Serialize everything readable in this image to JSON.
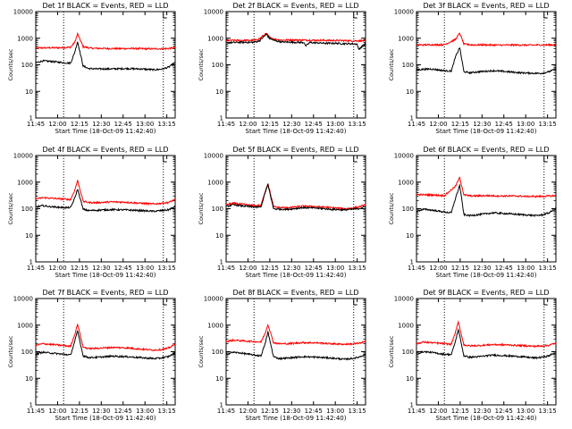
{
  "chart_data": [
    {
      "type": "line",
      "title": "Det 1f BLACK = Events, RED = LLD",
      "xlabel": "Start Time (18-Oct-09 11:42:40)",
      "ylabel": "Counts/sec",
      "yticks": [
        "1",
        "10",
        "100",
        "1000",
        "10000"
      ],
      "xticks": [
        "11:45",
        "12:00",
        "12:15",
        "12:30",
        "12:45",
        "13:00",
        "13:15"
      ],
      "ylim": [
        1,
        10000
      ],
      "xlim": [
        0,
        100
      ],
      "yscale": "log",
      "vlines": [
        20,
        91.5
      ],
      "series": [
        {
          "color": "#ff0000",
          "x": [
            0,
            20,
            25,
            28,
            30,
            34,
            40,
            50,
            60,
            70,
            80,
            90,
            95,
            100
          ],
          "y": [
            430,
            440,
            460,
            700,
            1450,
            480,
            420,
            410,
            405,
            410,
            400,
            400,
            410,
            440
          ]
        },
        {
          "color": "#000000",
          "x": [
            0,
            5,
            10,
            20,
            25,
            28,
            30,
            34,
            38,
            45,
            55,
            65,
            75,
            85,
            90,
            95,
            100
          ],
          "y": [
            120,
            140,
            135,
            120,
            115,
            300,
            750,
            90,
            72,
            70,
            70,
            72,
            70,
            65,
            68,
            80,
            120
          ]
        }
      ]
    },
    {
      "type": "line",
      "title": "Det 2f BLACK = Events, RED = LLD",
      "xlabel": "Start Time (18-Oct-09 11:42:40)",
      "ylabel": "Counts/sec",
      "yticks": [
        "1",
        "10",
        "100",
        "1000",
        "10000"
      ],
      "xticks": [
        "11:45",
        "12:00",
        "12:15",
        "12:30",
        "12:45",
        "13:00",
        "13:15"
      ],
      "ylim": [
        1,
        10000
      ],
      "xlim": [
        0,
        100
      ],
      "yscale": "log",
      "vlines": [
        20,
        91.5
      ],
      "series": [
        {
          "color": "#ff0000",
          "x": [
            0,
            10,
            20,
            24,
            27,
            29,
            31,
            35,
            40,
            50,
            60,
            70,
            80,
            90,
            100
          ],
          "y": [
            820,
            830,
            830,
            950,
            1300,
            1500,
            1100,
            900,
            850,
            860,
            840,
            830,
            820,
            800,
            800
          ]
        },
        {
          "color": "#000000",
          "x": [
            0,
            10,
            20,
            24,
            27,
            29,
            31,
            35,
            40,
            50,
            56,
            57,
            60,
            70,
            80,
            85,
            90,
            94,
            95,
            100
          ],
          "y": [
            680,
            700,
            700,
            800,
            1150,
            1400,
            1000,
            800,
            720,
            700,
            690,
            500,
            690,
            650,
            640,
            620,
            620,
            600,
            380,
            620
          ]
        }
      ]
    },
    {
      "type": "line",
      "title": "Det 3f BLACK = Events, RED = LLD",
      "xlabel": "Start Time (18-Oct-09 11:42:40)",
      "ylabel": "Counts/sec",
      "yticks": [
        "1",
        "10",
        "100",
        "1000",
        "10000"
      ],
      "xticks": [
        "11:45",
        "12:00",
        "12:15",
        "12:30",
        "12:45",
        "13:00",
        "13:15"
      ],
      "ylim": [
        1,
        10000
      ],
      "xlim": [
        0,
        100
      ],
      "yscale": "log",
      "vlines": [
        20,
        91.5
      ],
      "series": [
        {
          "color": "#ff0000",
          "x": [
            0,
            20,
            28,
            31,
            34,
            40,
            50,
            60,
            70,
            80,
            90,
            100
          ],
          "y": [
            560,
            570,
            900,
            1550,
            600,
            560,
            560,
            550,
            555,
            550,
            560,
            560
          ]
        },
        {
          "color": "#000000",
          "x": [
            0,
            10,
            20,
            25,
            28,
            31,
            34,
            38,
            45,
            55,
            65,
            75,
            85,
            90,
            95,
            100
          ],
          "y": [
            65,
            70,
            60,
            58,
            200,
            450,
            55,
            50,
            55,
            60,
            55,
            50,
            48,
            48,
            55,
            70
          ]
        }
      ]
    },
    {
      "type": "line",
      "title": "Det 4f BLACK = Events, RED = LLD",
      "xlabel": "Start Time (18-Oct-09 11:42:40)",
      "ylabel": "Counts/sec",
      "yticks": [
        "1",
        "10",
        "100",
        "1000",
        "10000"
      ],
      "xticks": [
        "11:45",
        "12:00",
        "12:15",
        "12:30",
        "12:45",
        "13:00",
        "13:15"
      ],
      "ylim": [
        1,
        10000
      ],
      "xlim": [
        0,
        100
      ],
      "yscale": "log",
      "vlines": [
        20,
        91.5
      ],
      "series": [
        {
          "color": "#ff0000",
          "x": [
            0,
            5,
            10,
            20,
            25,
            28,
            30,
            34,
            38,
            45,
            55,
            65,
            75,
            85,
            90,
            95,
            100
          ],
          "y": [
            230,
            260,
            250,
            230,
            220,
            500,
            1150,
            190,
            170,
            170,
            180,
            175,
            160,
            150,
            160,
            170,
            220
          ]
        },
        {
          "color": "#000000",
          "x": [
            0,
            5,
            10,
            20,
            25,
            28,
            30,
            34,
            38,
            45,
            55,
            65,
            75,
            85,
            90,
            95,
            100
          ],
          "y": [
            115,
            130,
            120,
            110,
            110,
            250,
            550,
            95,
            85,
            88,
            92,
            90,
            85,
            80,
            85,
            90,
            120
          ]
        }
      ]
    },
    {
      "type": "line",
      "title": "Det 5f BLACK = Events, RED = LLD",
      "xlabel": "Start Time (18-Oct-09 11:42:40)",
      "ylabel": "Counts/sec",
      "yticks": [
        "1",
        "10",
        "100",
        "1000",
        "10000"
      ],
      "xticks": [
        "11:45",
        "12:00",
        "12:15",
        "12:30",
        "12:45",
        "13:00",
        "13:15"
      ],
      "ylim": [
        1,
        10000
      ],
      "xlim": [
        0,
        100
      ],
      "yscale": "log",
      "vlines": [
        20,
        91.5
      ],
      "series": [
        {
          "color": "#ff0000",
          "x": [
            0,
            5,
            10,
            20,
            25,
            28,
            30,
            34,
            38,
            45,
            55,
            65,
            75,
            85,
            90,
            95,
            100
          ],
          "y": [
            140,
            160,
            150,
            130,
            130,
            450,
            900,
            120,
            110,
            110,
            125,
            120,
            110,
            100,
            105,
            115,
            140
          ]
        },
        {
          "color": "#000000",
          "x": [
            0,
            5,
            10,
            20,
            25,
            28,
            30,
            34,
            38,
            45,
            55,
            65,
            75,
            85,
            90,
            95,
            100
          ],
          "y": [
            120,
            140,
            130,
            115,
            115,
            400,
            800,
            100,
            95,
            95,
            110,
            105,
            95,
            90,
            95,
            100,
            120
          ]
        }
      ]
    },
    {
      "type": "line",
      "title": "Det 6f BLACK = Events, RED = LLD",
      "xlabel": "Start Time (18-Oct-09 11:42:40)",
      "ylabel": "Counts/sec",
      "yticks": [
        "1",
        "10",
        "100",
        "1000",
        "10000"
      ],
      "xticks": [
        "11:45",
        "12:00",
        "12:15",
        "12:30",
        "12:45",
        "13:00",
        "13:15"
      ],
      "ylim": [
        1,
        10000
      ],
      "xlim": [
        0,
        100
      ],
      "yscale": "log",
      "vlines": [
        20,
        91.5
      ],
      "series": [
        {
          "color": "#ff0000",
          "x": [
            0,
            10,
            20,
            28,
            31,
            34,
            40,
            50,
            60,
            70,
            80,
            90,
            100
          ],
          "y": [
            340,
            330,
            310,
            700,
            1500,
            330,
            300,
            310,
            300,
            300,
            290,
            290,
            310
          ]
        },
        {
          "color": "#000000",
          "x": [
            0,
            5,
            10,
            20,
            25,
            28,
            31,
            34,
            38,
            45,
            55,
            65,
            75,
            85,
            90,
            95,
            100
          ],
          "y": [
            80,
            95,
            90,
            75,
            70,
            250,
            750,
            60,
            55,
            60,
            70,
            65,
            60,
            55,
            58,
            70,
            100
          ]
        }
      ]
    },
    {
      "type": "line",
      "title": "Det 7f BLACK = Events, RED = LLD",
      "xlabel": "Start Time (18-Oct-09 11:42:40)",
      "ylabel": "Counts/sec",
      "yticks": [
        "1",
        "10",
        "100",
        "1000",
        "10000"
      ],
      "xticks": [
        "11:45",
        "12:00",
        "12:15",
        "12:30",
        "12:45",
        "13:00",
        "13:15"
      ],
      "ylim": [
        1,
        10000
      ],
      "xlim": [
        0,
        100
      ],
      "yscale": "log",
      "vlines": [
        20,
        91.5
      ],
      "series": [
        {
          "color": "#ff0000",
          "x": [
            0,
            5,
            10,
            20,
            25,
            28,
            30,
            34,
            38,
            45,
            55,
            65,
            75,
            85,
            90,
            95,
            100
          ],
          "y": [
            170,
            200,
            190,
            170,
            160,
            450,
            1100,
            150,
            130,
            135,
            145,
            140,
            125,
            115,
            120,
            135,
            190
          ]
        },
        {
          "color": "#000000",
          "x": [
            0,
            5,
            10,
            20,
            25,
            28,
            30,
            34,
            38,
            45,
            55,
            65,
            75,
            85,
            90,
            95,
            100
          ],
          "y": [
            80,
            95,
            90,
            80,
            75,
            250,
            600,
            70,
            60,
            62,
            68,
            65,
            60,
            55,
            58,
            65,
            90
          ]
        }
      ]
    },
    {
      "type": "line",
      "title": "Det 8f BLACK = Events, RED = LLD",
      "xlabel": "Start Time (18-Oct-09 11:42:40)",
      "ylabel": "Counts/sec",
      "yticks": [
        "1",
        "10",
        "100",
        "1000",
        "10000"
      ],
      "xticks": [
        "11:45",
        "12:00",
        "12:15",
        "12:30",
        "12:45",
        "13:00",
        "13:15"
      ],
      "ylim": [
        1,
        10000
      ],
      "xlim": [
        0,
        100
      ],
      "yscale": "log",
      "vlines": [
        20,
        91.5
      ],
      "series": [
        {
          "color": "#ff0000",
          "x": [
            0,
            5,
            10,
            20,
            25,
            28,
            30,
            34,
            38,
            45,
            55,
            65,
            75,
            85,
            90,
            95,
            100
          ],
          "y": [
            240,
            270,
            260,
            240,
            230,
            500,
            1050,
            220,
            200,
            200,
            220,
            215,
            200,
            190,
            195,
            205,
            240
          ]
        },
        {
          "color": "#000000",
          "x": [
            0,
            5,
            10,
            20,
            25,
            28,
            30,
            34,
            38,
            45,
            55,
            65,
            75,
            85,
            90,
            95,
            100
          ],
          "y": [
            80,
            95,
            90,
            75,
            70,
            200,
            550,
            65,
            55,
            58,
            65,
            62,
            58,
            52,
            55,
            62,
            80
          ]
        }
      ]
    },
    {
      "type": "line",
      "title": "Det 9f BLACK = Events, RED = LLD",
      "xlabel": "Start Time (18-Oct-09 11:42:40)",
      "ylabel": "Counts/sec",
      "yticks": [
        "1",
        "10",
        "100",
        "1000",
        "10000"
      ],
      "xticks": [
        "11:45",
        "12:00",
        "12:15",
        "12:30",
        "12:45",
        "13:00",
        "13:15"
      ],
      "ylim": [
        1,
        10000
      ],
      "xlim": [
        0,
        100
      ],
      "yscale": "log",
      "vlines": [
        20,
        91.5
      ],
      "series": [
        {
          "color": "#ff0000",
          "x": [
            0,
            5,
            10,
            20,
            25,
            28,
            30,
            34,
            38,
            45,
            55,
            65,
            75,
            85,
            90,
            95,
            100
          ],
          "y": [
            200,
            230,
            220,
            200,
            190,
            550,
            1300,
            180,
            165,
            170,
            185,
            180,
            170,
            160,
            165,
            175,
            210
          ]
        },
        {
          "color": "#000000",
          "x": [
            0,
            5,
            10,
            20,
            25,
            28,
            30,
            34,
            38,
            45,
            55,
            65,
            75,
            85,
            90,
            95,
            100
          ],
          "y": [
            85,
            100,
            95,
            80,
            78,
            250,
            700,
            70,
            62,
            65,
            75,
            70,
            65,
            58,
            62,
            70,
            95
          ]
        }
      ]
    }
  ]
}
